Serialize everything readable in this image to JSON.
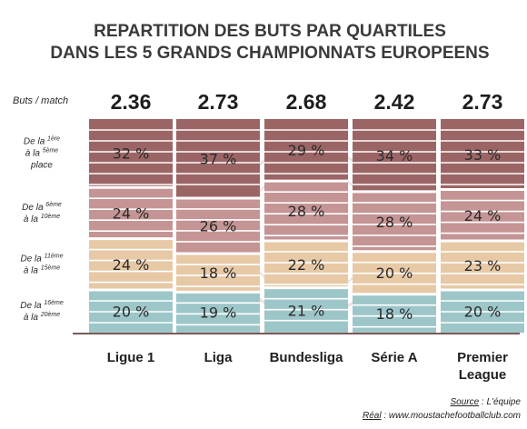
{
  "title_lines": [
    "REPARTITION DES BUTS PAR QUARTILES",
    "DANS LES 5 GRANDS CHAMPIONNATS EUROPEENS"
  ],
  "goals_per_match_label": "Buts / match",
  "rows": [
    {
      "lines": [
        [
          "De la ",
          "1ère",
          ""
        ],
        [
          "à la ",
          "5ème",
          ""
        ],
        [
          "place",
          "",
          ""
        ]
      ]
    },
    {
      "lines": [
        [
          "De la ",
          "6ème",
          ""
        ],
        [
          "à la ",
          "10ème",
          ""
        ]
      ]
    },
    {
      "lines": [
        [
          "De la ",
          "11ème",
          ""
        ],
        [
          "à la ",
          "15ème",
          ""
        ]
      ]
    },
    {
      "lines": [
        [
          "De la ",
          "16ème",
          ""
        ],
        [
          "à la ",
          "20ème",
          ""
        ]
      ]
    }
  ],
  "source": {
    "label": "Source",
    "text": " : L'équipe"
  },
  "credit": {
    "label": "Réal",
    "text": " : www.moustachefootballclub.com"
  },
  "colors": {
    "top": "#9c6565",
    "second": "#c59494",
    "third": "#e7c9a6",
    "bottom": "#9dc6c9",
    "stripe": "#ffffff",
    "axis": "#7a5a58"
  },
  "chart_data": {
    "type": "bar",
    "stacked": true,
    "orientation": "vertical",
    "categories": [
      "Ligue 1",
      "Liga",
      "Bundesliga",
      "Série A",
      "Premier League"
    ],
    "category_lines": [
      [
        "Ligue 1"
      ],
      [
        "Liga"
      ],
      [
        "Bundesliga"
      ],
      [
        "Série A"
      ],
      [
        "Premier",
        "League"
      ]
    ],
    "goals_per_match": [
      "2.36",
      "2.73",
      "2.68",
      "2.42",
      "2.73"
    ],
    "series": [
      {
        "values": [
          32,
          37,
          29,
          34,
          33
        ],
        "labels": [
          "32 %",
          "37 %",
          "29 %",
          "34 %",
          "33 %"
        ]
      },
      {
        "values": [
          24,
          26,
          28,
          28,
          24
        ],
        "labels": [
          "24 %",
          "26 %",
          "28 %",
          "28 %",
          "24 %"
        ]
      },
      {
        "values": [
          24,
          18,
          22,
          20,
          23
        ],
        "labels": [
          "24 %",
          "18 %",
          "22 %",
          "20 %",
          "23 %"
        ]
      },
      {
        "values": [
          20,
          19,
          21,
          18,
          20
        ],
        "labels": [
          "20 %",
          "19 %",
          "21 %",
          "18 %",
          "20 %"
        ]
      }
    ],
    "ylim": [
      0,
      100
    ],
    "grid": false,
    "legend": "none"
  }
}
